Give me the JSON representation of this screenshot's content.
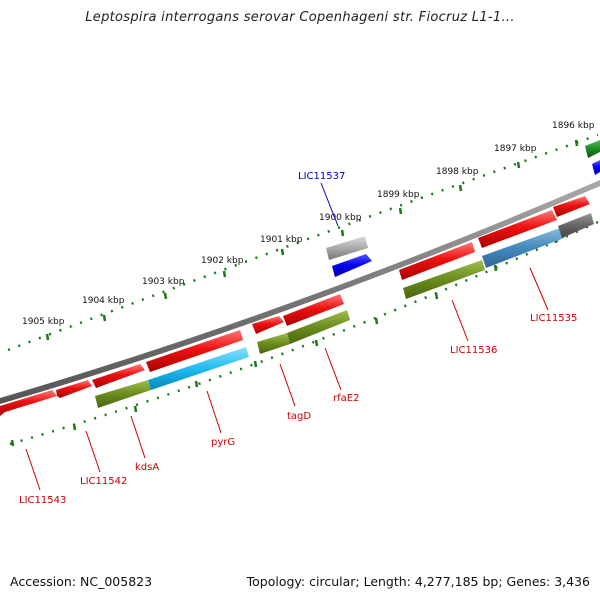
{
  "title": "Leptospira interrogans serovar Copenhageni str. Fiocruz L1-1...",
  "footer": {
    "accession": "Accession: NC_005823",
    "summary": "Topology: circular; Length: 4,277,185 bp; Genes: 3,436"
  },
  "colors": {
    "red": "#ee1111",
    "olive": "#6b8c1e",
    "cyan": "#22bbee",
    "steel": "#4488bb",
    "gray": "#999999",
    "blue": "#0000ee",
    "green": "#228822",
    "tick": "#1a7a1a",
    "label_red": "#cc0000",
    "label_blue": "#0000cc"
  },
  "kbp_labels": [
    "1905 kbp",
    "1904 kbp",
    "1903 kbp",
    "1902 kbp",
    "1901 kbp",
    "1900 kbp",
    "1899 kbp",
    "1898 kbp",
    "1897 kbp",
    "1896 kbp"
  ],
  "gene_labels": [
    {
      "name": "LIC11543",
      "color": "red"
    },
    {
      "name": "LIC11542",
      "color": "red"
    },
    {
      "name": "kdsA",
      "color": "red"
    },
    {
      "name": "pyrG",
      "color": "red"
    },
    {
      "name": "tagD",
      "color": "red"
    },
    {
      "name": "rfaE2",
      "color": "red"
    },
    {
      "name": "LIC11536",
      "color": "red"
    },
    {
      "name": "LIC11535",
      "color": "red"
    },
    {
      "name": "LIC11537",
      "color": "blue"
    }
  ]
}
